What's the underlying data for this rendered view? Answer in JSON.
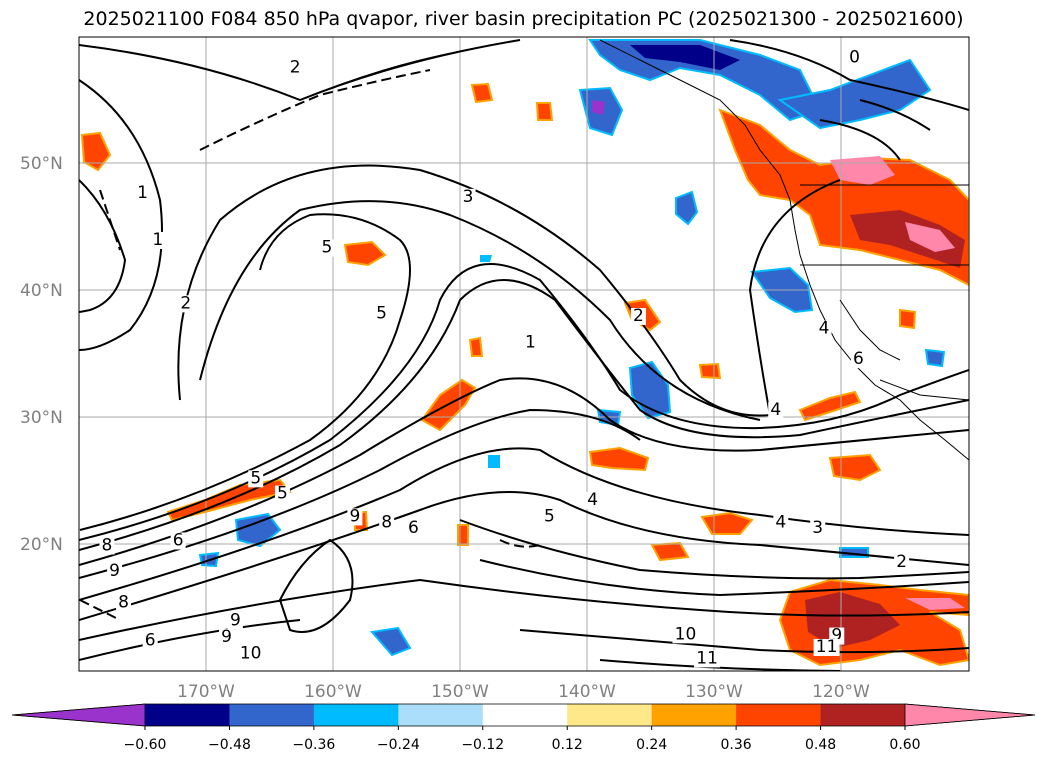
{
  "title": "2025021100 F084 850 hPa qvapor, river basin precipitation PC (2025021300 - 2025021600)",
  "axes": {
    "lat_labels": [
      "50°N",
      "40°N",
      "30°N",
      "20°N"
    ],
    "lon_labels": [
      "170°W",
      "160°W",
      "150°W",
      "140°W",
      "130°W",
      "120°W"
    ]
  },
  "contour_labels": [
    {
      "text": "2",
      "lon": -163.0,
      "lat": 57.2
    },
    {
      "text": "0",
      "lon": -119.0,
      "lat": 58.0
    },
    {
      "text": "1",
      "lon": -175.0,
      "lat": 47.3
    },
    {
      "text": "1",
      "lon": -173.8,
      "lat": 43.6
    },
    {
      "text": "2",
      "lon": -171.6,
      "lat": 38.6
    },
    {
      "text": "5",
      "lon": -160.5,
      "lat": 43.0
    },
    {
      "text": "5",
      "lon": -156.2,
      "lat": 37.8
    },
    {
      "text": "3",
      "lon": -149.4,
      "lat": 47.0
    },
    {
      "text": "2",
      "lon": -136.0,
      "lat": 37.6
    },
    {
      "text": "1",
      "lon": -144.5,
      "lat": 35.5
    },
    {
      "text": "4",
      "lon": -125.2,
      "lat": 30.2
    },
    {
      "text": "4",
      "lon": -121.4,
      "lat": 36.6
    },
    {
      "text": "6",
      "lon": -118.7,
      "lat": 34.2
    },
    {
      "text": "5",
      "lon": -166.1,
      "lat": 24.8
    },
    {
      "text": "5",
      "lon": -164.0,
      "lat": 23.6
    },
    {
      "text": "9",
      "lon": -158.3,
      "lat": 21.8
    },
    {
      "text": "8",
      "lon": -155.8,
      "lat": 21.3
    },
    {
      "text": "6",
      "lon": -153.7,
      "lat": 20.9
    },
    {
      "text": "6",
      "lon": -172.2,
      "lat": 19.9
    },
    {
      "text": "4",
      "lon": -139.6,
      "lat": 23.1
    },
    {
      "text": "5",
      "lon": -143.0,
      "lat": 21.8
    },
    {
      "text": "4",
      "lon": -124.8,
      "lat": 21.3
    },
    {
      "text": "3",
      "lon": -121.9,
      "lat": 20.9
    },
    {
      "text": "2",
      "lon": -115.3,
      "lat": 18.2
    },
    {
      "text": "10",
      "lon": -132.3,
      "lat": 12.5
    },
    {
      "text": "9",
      "lon": -120.4,
      "lat": 12.4
    },
    {
      "text": "11",
      "lon": -121.2,
      "lat": 11.5
    },
    {
      "text": "11",
      "lon": -130.6,
      "lat": 10.6
    },
    {
      "text": "8",
      "lon": -177.8,
      "lat": 19.5
    },
    {
      "text": "9",
      "lon": -177.2,
      "lat": 17.5
    },
    {
      "text": "8",
      "lon": -176.5,
      "lat": 15.0
    },
    {
      "text": "9",
      "lon": -167.7,
      "lat": 13.6
    },
    {
      "text": "6",
      "lon": -174.4,
      "lat": 12.0
    },
    {
      "text": "10",
      "lon": -166.5,
      "lat": 11.0
    },
    {
      "text": "9",
      "lon": -168.4,
      "lat": 12.3
    }
  ],
  "colorbar": {
    "colors": [
      "#9933cc",
      "#000088",
      "#3366cc",
      "#00bbff",
      "#aadefa",
      "#ffffff",
      "#ffe88a",
      "#ffa200",
      "#ff4400",
      "#b02222",
      "#ff88aa"
    ],
    "tick_labels": [
      "−0.60",
      "−0.48",
      "−0.36",
      "−0.24",
      "−0.12",
      "0.12",
      "0.24",
      "0.36",
      "0.48",
      "0.60"
    ]
  },
  "colors": {
    "grid": "#aaaaaa",
    "contour": "#000000",
    "tick_label": "#808080"
  }
}
